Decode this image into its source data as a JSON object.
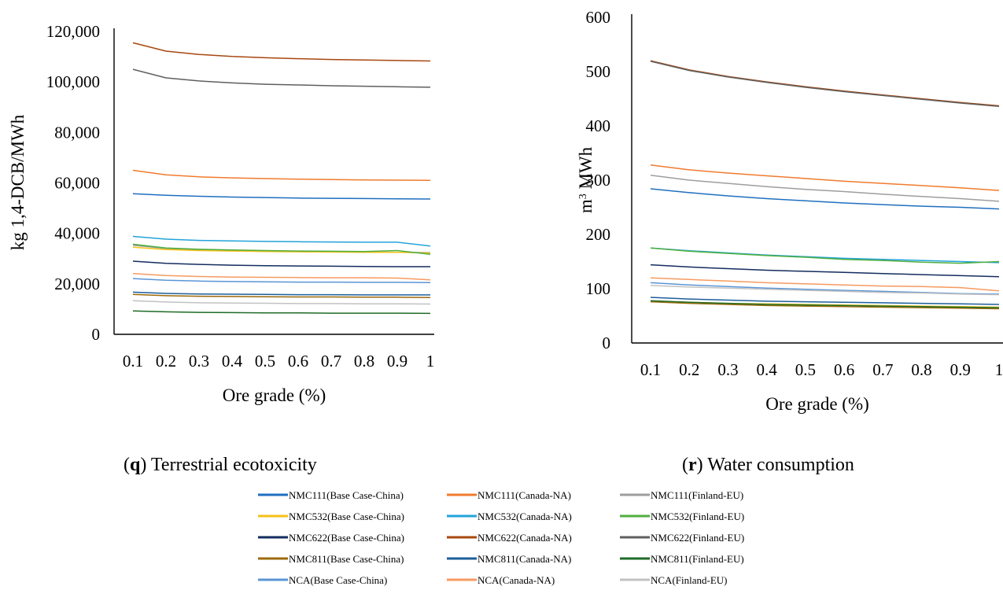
{
  "chart_data": [
    {
      "type": "line",
      "panel": "q",
      "caption_letter": "q",
      "caption_text": ") Terrestrial ecotoxicity",
      "xlabel": "Ore grade (%)",
      "ylabel": "kg 1,4-DCB/MWh",
      "ylim": [
        0,
        120000
      ],
      "yticks": [
        "0",
        "20,000",
        "40,000",
        "60,000",
        "80,000",
        "100,000",
        "120,000"
      ],
      "ytick_values": [
        0,
        20000,
        40000,
        60000,
        80000,
        100000,
        120000
      ],
      "x": [
        "0.1",
        "0.2",
        "0.3",
        "0.4",
        "0.5",
        "0.6",
        "0.7",
        "0.8",
        "0.9",
        "1"
      ],
      "grid": false,
      "series": [
        {
          "name": "NMC111(Base Case-China)",
          "color": "#1f6fbf",
          "values": [
            55700,
            55100,
            54700,
            54400,
            54200,
            54000,
            53900,
            53800,
            53700,
            53600
          ]
        },
        {
          "name": "NMC111(Canada-NA)",
          "color": "#f07b2f",
          "values": [
            65000,
            63200,
            62400,
            62000,
            61700,
            61500,
            61300,
            61200,
            61100,
            61000
          ]
        },
        {
          "name": "NMC111(Finland-EU)",
          "color": "#9e9e9e",
          "values": [
            35300,
            34000,
            33500,
            33200,
            33000,
            32800,
            32700,
            32600,
            32500,
            32400
          ]
        },
        {
          "name": "NMC532(Base Case-China)",
          "color": "#f5c218",
          "values": [
            34500,
            33600,
            33200,
            33000,
            32800,
            32700,
            32600,
            32500,
            32500,
            32200
          ]
        },
        {
          "name": "NMC532(Canada-NA)",
          "color": "#23a3d9",
          "values": [
            38800,
            37700,
            37200,
            37000,
            36800,
            36700,
            36600,
            36500,
            36500,
            35000
          ]
        },
        {
          "name": "NMC532(Finland-EU)",
          "color": "#4fae3f",
          "values": [
            35700,
            34200,
            33700,
            33400,
            33200,
            33000,
            32900,
            32800,
            33200,
            31700
          ]
        },
        {
          "name": "NMC622(Base Case-China)",
          "color": "#132d5e",
          "values": [
            29000,
            28100,
            27700,
            27400,
            27200,
            27100,
            27000,
            26900,
            26800,
            26800
          ]
        },
        {
          "name": "NMC622(Canada-NA)",
          "color": "#a8470f",
          "values": [
            115500,
            112200,
            110900,
            110100,
            109600,
            109200,
            108900,
            108700,
            108500,
            108300
          ]
        },
        {
          "name": "NMC622(Finland-EU)",
          "color": "#5f5f5f",
          "values": [
            105000,
            101600,
            100400,
            99600,
            99100,
            98800,
            98500,
            98300,
            98100,
            97900
          ]
        },
        {
          "name": "NMC811(Base Case-China)",
          "color": "#9b6a0c",
          "values": [
            15800,
            15300,
            15100,
            15000,
            14900,
            14800,
            14800,
            14700,
            14700,
            14600
          ]
        },
        {
          "name": "NMC811(Canada-NA)",
          "color": "#1d5f99",
          "values": [
            16700,
            16200,
            16000,
            15900,
            15800,
            15700,
            15700,
            15600,
            15600,
            15600
          ]
        },
        {
          "name": "NMC811(Finland-EU)",
          "color": "#1e6b26",
          "values": [
            9300,
            8900,
            8700,
            8600,
            8500,
            8500,
            8400,
            8400,
            8400,
            8300
          ]
        },
        {
          "name": "NCA(Base Case-China)",
          "color": "#5a95d6",
          "values": [
            22100,
            21400,
            21100,
            20900,
            20800,
            20700,
            20700,
            20600,
            20600,
            20500
          ]
        },
        {
          "name": "NCA(Canada-NA)",
          "color": "#f79a5f",
          "values": [
            24100,
            23300,
            22900,
            22700,
            22600,
            22500,
            22400,
            22400,
            22300,
            21600
          ]
        },
        {
          "name": "NCA(Finland-EU)",
          "color": "#c2c2c2",
          "values": [
            13300,
            12800,
            12500,
            12400,
            12300,
            12200,
            12200,
            12100,
            12100,
            12000
          ]
        }
      ]
    },
    {
      "type": "line",
      "panel": "r",
      "caption_letter": "r",
      "caption_text": ") Water consumption",
      "xlabel": "Ore grade (%)",
      "ylabel_main": "m",
      "ylabel_sup": "3",
      "ylabel_rest": " MWh",
      "ylim": [
        0,
        600
      ],
      "yticks": [
        "0",
        "100",
        "200",
        "300",
        "400",
        "500",
        "600"
      ],
      "ytick_values": [
        0,
        100,
        200,
        300,
        400,
        500,
        600
      ],
      "x": [
        "0.1",
        "0.2",
        "0.3",
        "0.4",
        "0.5",
        "0.6",
        "0.7",
        "0.8",
        "0.9",
        "1"
      ],
      "grid": false,
      "series": [
        {
          "name": "NMC111(Base Case-China)",
          "color": "#1f6fbf",
          "values": [
            284,
            277,
            271,
            266,
            262,
            258,
            255,
            252,
            250,
            247
          ]
        },
        {
          "name": "NMC111(Canada-NA)",
          "color": "#f07b2f",
          "values": [
            328,
            319,
            313,
            308,
            303,
            298,
            294,
            290,
            286,
            281
          ]
        },
        {
          "name": "NMC111(Finland-EU)",
          "color": "#9e9e9e",
          "values": [
            309,
            300,
            294,
            288,
            283,
            279,
            274,
            270,
            266,
            261
          ]
        },
        {
          "name": "NMC532(Base Case-China)",
          "color": "#f5c218",
          "values": [
            77,
            75,
            73,
            72,
            71,
            70,
            69,
            68,
            67,
            66
          ]
        },
        {
          "name": "NMC532(Canada-NA)",
          "color": "#23a3d9",
          "values": [
            175,
            170,
            166,
            162,
            159,
            156,
            154,
            152,
            150,
            148
          ]
        },
        {
          "name": "NMC532(Finland-EU)",
          "color": "#4fae3f",
          "values": [
            175,
            169,
            165,
            161,
            158,
            154,
            152,
            149,
            147,
            150
          ]
        },
        {
          "name": "NMC622(Base Case-China)",
          "color": "#132d5e",
          "values": [
            144,
            140,
            137,
            134,
            132,
            130,
            128,
            126,
            124,
            122
          ]
        },
        {
          "name": "NMC622(Canada-NA)",
          "color": "#a8470f",
          "values": [
            520,
            503,
            491,
            481,
            472,
            464,
            457,
            450,
            443,
            437
          ]
        },
        {
          "name": "NMC622(Finland-EU)",
          "color": "#5f5f5f",
          "values": [
            519,
            502,
            490,
            480,
            471,
            463,
            456,
            449,
            442,
            436
          ]
        },
        {
          "name": "NMC811(Base Case-China)",
          "color": "#9b6a0c",
          "values": [
            76,
            73,
            71,
            69,
            68,
            67,
            66,
            65,
            64,
            63
          ]
        },
        {
          "name": "NMC811(Canada-NA)",
          "color": "#1d5f99",
          "values": [
            84,
            81,
            79,
            77,
            76,
            75,
            74,
            73,
            72,
            71
          ]
        },
        {
          "name": "NMC811(Finland-EU)",
          "color": "#1e6b26",
          "values": [
            78,
            75,
            73,
            71,
            70,
            69,
            68,
            67,
            66,
            65
          ]
        },
        {
          "name": "NCA(Base Case-China)",
          "color": "#5a95d6",
          "values": [
            111,
            107,
            104,
            101,
            99,
            97,
            95,
            93,
            91,
            90
          ]
        },
        {
          "name": "NCA(Canada-NA)",
          "color": "#f79a5f",
          "values": [
            120,
            117,
            114,
            111,
            109,
            107,
            105,
            104,
            102,
            96
          ]
        },
        {
          "name": "NCA(Finland-EU)",
          "color": "#c2c2c2",
          "values": [
            106,
            103,
            101,
            99,
            97,
            95,
            93,
            92,
            90,
            89
          ]
        }
      ]
    }
  ],
  "legend": {
    "placement": "bottom",
    "entries": [
      {
        "label": "NMC111(Base Case-China)",
        "color": "#1f6fbf"
      },
      {
        "label": "NMC111(Canada-NA)",
        "color": "#f07b2f"
      },
      {
        "label": "NMC111(Finland-EU)",
        "color": "#9e9e9e"
      },
      {
        "label": "NMC532(Base Case-China)",
        "color": "#f5c218"
      },
      {
        "label": "NMC532(Canada-NA)",
        "color": "#23a3d9"
      },
      {
        "label": "NMC532(Finland-EU)",
        "color": "#4fae3f"
      },
      {
        "label": "NMC622(Base Case-China)",
        "color": "#132d5e"
      },
      {
        "label": "NMC622(Canada-NA)",
        "color": "#a8470f"
      },
      {
        "label": "NMC622(Finland-EU)",
        "color": "#5f5f5f"
      },
      {
        "label": "NMC811(Base Case-China)",
        "color": "#9b6a0c"
      },
      {
        "label": "NMC811(Canada-NA)",
        "color": "#1d5f99"
      },
      {
        "label": "NMC811(Finland-EU)",
        "color": "#1e6b26"
      },
      {
        "label": "NCA(Base Case-China)",
        "color": "#5a95d6"
      },
      {
        "label": "NCA(Canada-NA)",
        "color": "#f79a5f"
      },
      {
        "label": "NCA(Finland-EU)",
        "color": "#c2c2c2"
      }
    ]
  }
}
